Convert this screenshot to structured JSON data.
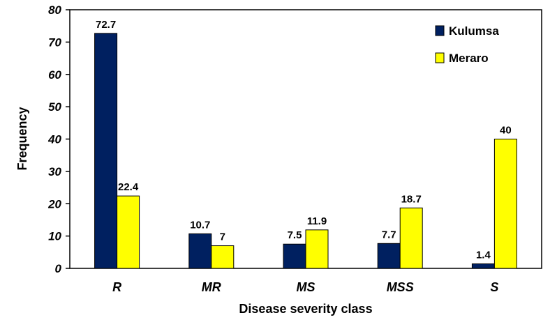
{
  "chart_data": {
    "type": "bar",
    "categories": [
      "R",
      "MR",
      "MS",
      "MSS",
      "S"
    ],
    "series": [
      {
        "name": "Kulumsa",
        "color": "#002060",
        "values": [
          72.7,
          10.7,
          7.5,
          7.7,
          1.4
        ],
        "labels": [
          "72.7",
          "10.7",
          "7.5",
          "7.7",
          "1.4"
        ]
      },
      {
        "name": "Meraro",
        "color": "#FFFF00",
        "values": [
          22.4,
          7,
          11.9,
          18.7,
          40
        ],
        "labels": [
          "22.4",
          "7",
          "11.9",
          "18.7",
          "40"
        ]
      }
    ],
    "xlabel": "Disease severity class",
    "ylabel": "Frequency",
    "ylim": [
      0,
      80
    ],
    "yticks": [
      0,
      10,
      20,
      30,
      40,
      50,
      60,
      70,
      80
    ],
    "legend_position": "top-right",
    "grid": false
  }
}
